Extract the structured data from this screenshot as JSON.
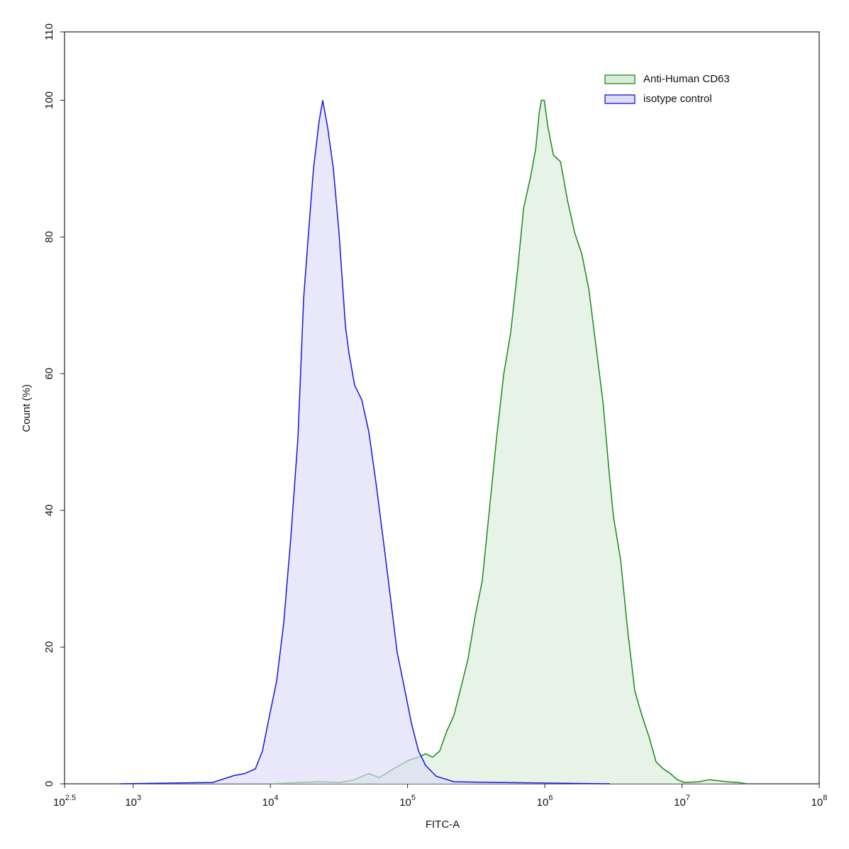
{
  "chart_data": {
    "type": "histogram-overlay",
    "x_label": "FITC-A",
    "y_label": "Count  (%)",
    "xscale": "log",
    "xlim": [
      316.2278,
      100000000
    ],
    "xticks": [
      {
        "value": 316.2278,
        "label": "10",
        "exponent": "2.5"
      },
      {
        "value": 1000,
        "label": "10",
        "exponent": "3"
      },
      {
        "value": 10000,
        "label": "10",
        "exponent": "4"
      },
      {
        "value": 100000,
        "label": "10",
        "exponent": "5"
      },
      {
        "value": 1000000,
        "label": "10",
        "exponent": "6"
      },
      {
        "value": 10000000,
        "label": "10",
        "exponent": "7"
      },
      {
        "value": 100000000,
        "label": "10",
        "exponent": "8"
      }
    ],
    "ylim": [
      0,
      110
    ],
    "yticks": [
      0,
      20,
      40,
      60,
      80,
      100,
      110
    ],
    "legend": "top-right",
    "series": [
      {
        "name": "Anti-Human CD63",
        "color": "#1a8a1a",
        "fill": "#d8ecd8",
        "x": [
          9860,
          22680,
          32360,
          41120,
          52210,
          62250,
          79120,
          100400,
          120200,
          135200,
          152200,
          171300,
          193000,
          217800,
          244900,
          276000,
          310800,
          350200,
          394500,
          444600,
          500600,
          564000,
          635300,
          700300,
          789500,
          859300,
          911000,
          945000,
          991000,
          1052000,
          1155000,
          1302000,
          1466000,
          1652000,
          1862000,
          2097000,
          2363000,
          2662000,
          2985000,
          3170000,
          3570000,
          4022000,
          4530000,
          5103000,
          5748000,
          6474000,
          7293000,
          8214000,
          9253000,
          10420000,
          13230000,
          15840000,
          21320000,
          25480000,
          30120000
        ],
        "values": [
          0,
          0.3,
          0.2,
          0.6,
          1.5,
          0.9,
          2.2,
          3.4,
          3.9,
          4.4,
          3.9,
          4.8,
          7.7,
          10,
          14.1,
          18.3,
          24.5,
          29.7,
          40,
          50.5,
          59.8,
          66,
          75.4,
          84.2,
          88.9,
          93,
          98.2,
          100,
          100,
          96.2,
          92,
          91,
          85.3,
          80.6,
          77.5,
          72.3,
          64,
          55.7,
          44.2,
          39,
          32.8,
          22.4,
          13.6,
          10,
          6.9,
          3.2,
          2.2,
          1.5,
          0.6,
          0.2,
          0.3,
          0.6,
          0.3,
          0.2,
          0
        ]
      },
      {
        "name": "isotype control",
        "color": "#1515e0",
        "fill": "#dcdcf8",
        "x": [
          809,
          3802,
          5433,
          6497,
          7780,
          8750,
          9860,
          11110,
          12510,
          14090,
          15880,
          17470,
          18970,
          20620,
          22680,
          24080,
          26170,
          28790,
          31670,
          35250,
          37410,
          41120,
          46330,
          52210,
          58750,
          66220,
          74640,
          83950,
          94620,
          106600,
          120200,
          135200,
          161800,
          217800,
          444600,
          2985000
        ],
        "values": [
          0,
          0.2,
          1.2,
          1.5,
          2.2,
          4.8,
          10,
          15,
          23.5,
          36,
          50.5,
          71,
          80.6,
          90,
          97,
          100,
          96,
          90,
          80.6,
          67,
          63,
          58.3,
          56.2,
          51.5,
          44.2,
          36,
          27.6,
          19.3,
          14.1,
          8.9,
          4.8,
          2.7,
          1.1,
          0.3,
          0.2,
          0
        ]
      }
    ]
  }
}
